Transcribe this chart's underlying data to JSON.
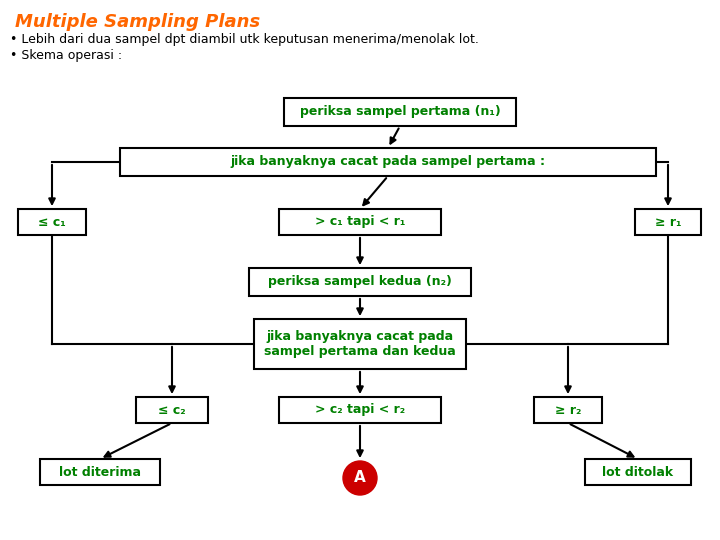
{
  "title": "Multiple Sampling Plans",
  "title_color": "#FF6600",
  "bullet1": "Lebih dari dua sampel dpt diambil utk keputusan menerima/menolak lot.",
  "bullet2": "Skema operasi :",
  "background_color": "#FFFFFF",
  "text_color": "#000000",
  "box_text_color": "#008000",
  "box_edge_color": "#000000",
  "arrow_color": "#000000",
  "box1_text": "periksa sampel pertama (n₁)",
  "box2_text": "jika banyaknya cacat pada sampel pertama :",
  "box_left1_text": "≤ c₁",
  "box_center1_text": "> c₁ tapi < r₁",
  "box_right1_text": "≥ r₁",
  "box3_text": "periksa sampel kedua (n₂)",
  "box4_text": "jika banyaknya cacat pada\nsampel pertama dan kedua",
  "box_left2_text": "≤ c₂",
  "box_center2_text": "> c₂ tapi < r₂",
  "box_right2_text": "≥ r₂",
  "bottom_left_text": "lot diterima",
  "bottom_center_text": "A",
  "bottom_right_text": "lot ditolak",
  "circle_color": "#CC0000",
  "circle_text_color": "#FFFFFF",
  "lw": 1.5
}
